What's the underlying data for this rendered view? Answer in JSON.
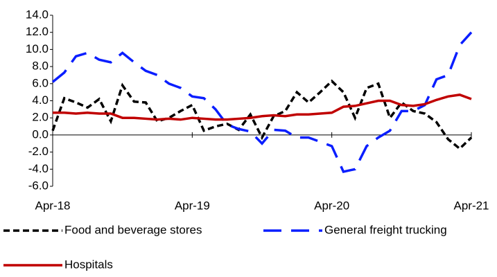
{
  "chart_data": {
    "type": "line",
    "categories": [
      "Apr-18",
      null,
      null,
      null,
      null,
      null,
      null,
      null,
      null,
      null,
      null,
      null,
      "Apr-19",
      null,
      null,
      null,
      null,
      null,
      null,
      null,
      null,
      null,
      null,
      null,
      "Apr-20",
      null,
      null,
      null,
      null,
      null,
      null,
      null,
      null,
      null,
      null,
      null,
      "Apr-21"
    ],
    "series": [
      {
        "name": "Food and beverage stores",
        "color": "#000000",
        "style": "dashed",
        "values": [
          0.5,
          4.3,
          3.8,
          3.2,
          4.2,
          1.6,
          5.8,
          3.9,
          3.8,
          1.6,
          2.0,
          2.8,
          3.5,
          0.5,
          1.0,
          1.3,
          0.6,
          2.4,
          -0.3,
          2.2,
          2.8,
          5.0,
          3.8,
          5.0,
          6.3,
          5.0,
          2.0,
          5.5,
          6.0,
          2.0,
          3.8,
          2.8,
          2.5,
          1.5,
          -0.5,
          -1.6,
          -0.3
        ]
      },
      {
        "name": "General freight trucking",
        "color": "#0a1eff",
        "style": "long-dashed",
        "values": [
          6.2,
          7.3,
          9.2,
          9.6,
          8.8,
          8.5,
          9.6,
          8.5,
          7.5,
          7.0,
          6.0,
          5.5,
          4.5,
          4.3,
          3.0,
          1.2,
          0.7,
          0.4,
          -1.0,
          0.6,
          0.5,
          -0.3,
          -0.3,
          -0.8,
          -1.3,
          -4.3,
          -4.0,
          -1.3,
          -0.3,
          0.5,
          2.8,
          2.8,
          3.5,
          6.5,
          7.0,
          10.5,
          12.0
        ]
      },
      {
        "name": "Hospitals",
        "color": "#c00000",
        "style": "solid",
        "values": [
          2.6,
          2.6,
          2.5,
          2.6,
          2.5,
          2.5,
          2.0,
          2.0,
          1.9,
          1.8,
          1.9,
          1.8,
          2.0,
          1.9,
          1.8,
          1.8,
          1.9,
          2.0,
          2.2,
          2.3,
          2.2,
          2.4,
          2.4,
          2.5,
          2.6,
          3.3,
          3.4,
          3.7,
          4.0,
          4.0,
          3.5,
          3.4,
          3.6,
          4.1,
          4.5,
          4.7,
          4.2
        ]
      }
    ],
    "ylim": [
      -6,
      14
    ],
    "yticks": [
      {
        "value": -6,
        "label": "-6.0"
      },
      {
        "value": -4,
        "label": "-4.0"
      },
      {
        "value": -2,
        "label": "-2.0"
      },
      {
        "value": 0,
        "label": "0.0"
      },
      {
        "value": 2,
        "label": "2.0"
      },
      {
        "value": 4,
        "label": "4.0"
      },
      {
        "value": 6,
        "label": "6.0"
      },
      {
        "value": 8,
        "label": "8.0"
      },
      {
        "value": 10,
        "label": "10.0"
      },
      {
        "value": 12,
        "label": "12.0"
      },
      {
        "value": 14,
        "label": "14.0"
      }
    ],
    "grid": false
  }
}
